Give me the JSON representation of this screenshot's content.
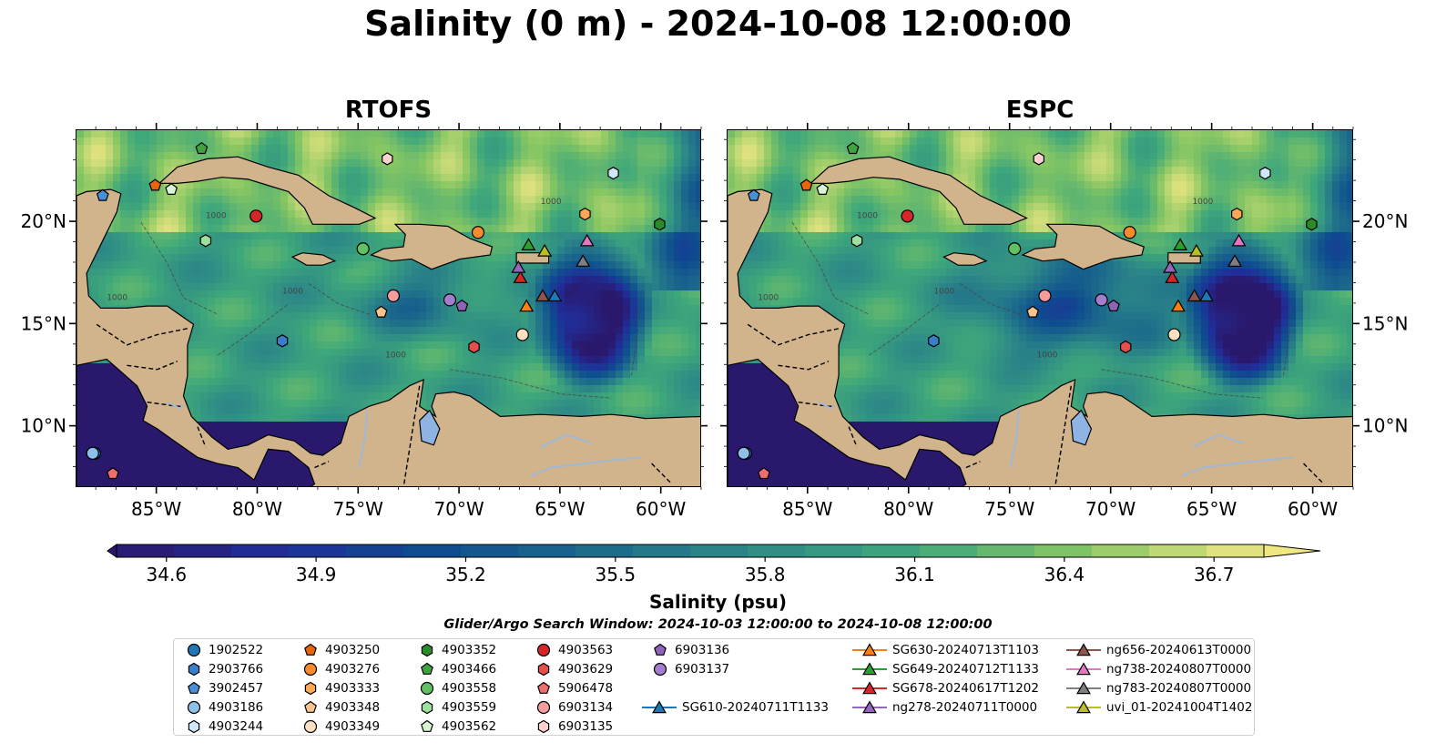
{
  "title": "Salinity (0 m) - 2024-10-08 12:00:00",
  "panels": [
    {
      "name": "rtofs",
      "title": "RTOFS"
    },
    {
      "name": "espc",
      "title": "ESPC"
    }
  ],
  "map": {
    "lon_range": [
      -89,
      -58
    ],
    "lat_range": [
      7,
      24.5
    ],
    "lon_ticks": [
      "85°W",
      "80°W",
      "75°W",
      "70°W",
      "65°W",
      "60°W"
    ],
    "lat_ticks": [
      "20°N",
      "15°N",
      "10°N"
    ],
    "land_color": "#d2b48c",
    "river_color": "#9fb8d6",
    "lake_color": "#8fb4e3",
    "isobath_label": "1000"
  },
  "colorbar": {
    "label": "Salinity (psu)",
    "min": 34.5,
    "max": 36.8,
    "ticks": [
      "34.6",
      "34.9",
      "35.2",
      "35.5",
      "35.8",
      "36.1",
      "36.4",
      "36.7"
    ],
    "colormap": "haline",
    "extend": "both"
  },
  "search_window": "Glider/Argo Search Window: 2024-10-03 12:00:00 to 2024-10-08 12:00:00",
  "legend": {
    "argo": [
      {
        "id": "1902522",
        "marker": "circle",
        "color": "#1f77b4",
        "lon": -88.1,
        "lat": 8.7
      },
      {
        "id": "2903766",
        "marker": "hexagon",
        "color": "#3a7dc9",
        "lon": -78.8,
        "lat": 14.2
      },
      {
        "id": "3902457",
        "marker": "pentagon",
        "color": "#4a8fd6",
        "lon": -87.7,
        "lat": 21.3
      },
      {
        "id": "4903186",
        "marker": "circle",
        "color": "#8ec1ea",
        "lon": -88.2,
        "lat": 8.7
      },
      {
        "id": "4903244",
        "marker": "hexagon",
        "color": "#cfe6fb",
        "lon": -62.4,
        "lat": 22.4
      },
      {
        "id": "4903250",
        "marker": "pentagon",
        "color": "#e8650c",
        "lon": -85.1,
        "lat": 21.8
      },
      {
        "id": "4903276",
        "marker": "circle",
        "color": "#fb8a2a",
        "lon": -69.1,
        "lat": 19.5
      },
      {
        "id": "4903333",
        "marker": "hexagon",
        "color": "#fda856",
        "lon": -63.8,
        "lat": 20.4
      },
      {
        "id": "4903348",
        "marker": "pentagon",
        "color": "#fdc38d",
        "lon": -73.9,
        "lat": 15.6
      },
      {
        "id": "4903349",
        "marker": "circle",
        "color": "#fde0c1",
        "lon": -66.9,
        "lat": 14.5
      },
      {
        "id": "4903352",
        "marker": "hexagon",
        "color": "#2a8b2a",
        "lon": -60.1,
        "lat": 19.9
      },
      {
        "id": "4903466",
        "marker": "pentagon",
        "color": "#3fa43f",
        "lon": -82.8,
        "lat": 23.6
      },
      {
        "id": "4903558",
        "marker": "circle",
        "color": "#61c061",
        "lon": -74.8,
        "lat": 18.7
      },
      {
        "id": "4903559",
        "marker": "hexagon",
        "color": "#9ddf9d",
        "lon": -82.6,
        "lat": 19.1
      },
      {
        "id": "4903562",
        "marker": "pentagon",
        "color": "#d6f5d0",
        "lon": -84.3,
        "lat": 21.6
      },
      {
        "id": "4903563",
        "marker": "circle",
        "color": "#d62728",
        "lon": -80.1,
        "lat": 20.3
      },
      {
        "id": "4903629",
        "marker": "hexagon",
        "color": "#e34f4f",
        "lon": -69.3,
        "lat": 13.9
      },
      {
        "id": "5906478",
        "marker": "pentagon",
        "color": "#ef6f6f",
        "lon": -87.2,
        "lat": 7.7
      },
      {
        "id": "6903134",
        "marker": "circle",
        "color": "#f59c9c",
        "lon": -73.3,
        "lat": 16.4
      },
      {
        "id": "6903135",
        "marker": "hexagon",
        "color": "#fbd2d2",
        "lon": -73.6,
        "lat": 23.1
      },
      {
        "id": "6903136",
        "marker": "pentagon",
        "color": "#8e63b8",
        "lon": -69.9,
        "lat": 15.9
      },
      {
        "id": "6903137",
        "marker": "circle",
        "color": "#a57dcd",
        "lon": -70.5,
        "lat": 16.2
      }
    ],
    "gliders": [
      {
        "id": "SG610-20240711T1133",
        "color": "#1f77b4",
        "lon": -65.3,
        "lat": 16.4
      },
      {
        "id": "SG630-20240713T1103",
        "color": "#ff7f0e",
        "lon": -66.7,
        "lat": 15.9
      },
      {
        "id": "SG649-20240712T1133",
        "color": "#2ca02c",
        "lon": -66.6,
        "lat": 18.9
      },
      {
        "id": "SG678-20240617T1202",
        "color": "#d62728",
        "lon": -67.0,
        "lat": 17.3
      },
      {
        "id": "ng278-20240711T0000",
        "color": "#9467bd",
        "lon": -67.1,
        "lat": 17.8
      },
      {
        "id": "ng656-20240613T0000",
        "color": "#8c564b",
        "lon": -65.9,
        "lat": 16.4
      },
      {
        "id": "ng738-20240807T0000",
        "color": "#e377c2",
        "lon": -63.7,
        "lat": 19.1
      },
      {
        "id": "ng783-20240807T0000",
        "color": "#7f7f7f",
        "lon": -63.9,
        "lat": 18.1
      },
      {
        "id": "uvi_01-20241004T1402",
        "color": "#bcbd22",
        "lon": -65.8,
        "lat": 18.6
      }
    ]
  }
}
